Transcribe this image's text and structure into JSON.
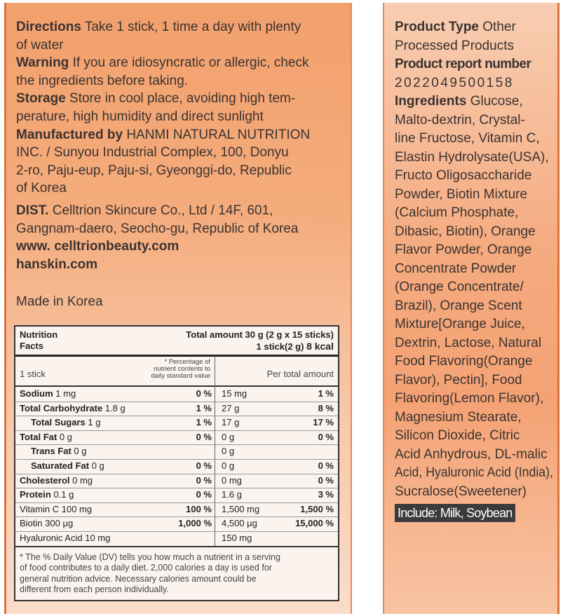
{
  "left": {
    "sections": [
      {
        "label": "Directions",
        "lines": [
          "Take 1 stick, 1 time a day with plenty",
          "of water"
        ]
      },
      {
        "label": "Warning",
        "lines": [
          "If you are idiosyncratic or allergic, check",
          "the ingredients before taking."
        ]
      },
      {
        "label": "Storage",
        "lines": [
          "Store in cool place, avoiding high tem-",
          "perature, high humidity and direct sunlight"
        ]
      },
      {
        "label": "Manufactured by",
        "lines": [
          "HANMI NATURAL NUTRITION",
          "INC. / Sunyou Industrial Complex, 100, Donyu",
          "2-ro, Paju-eup, Paju-si, Gyeonggi-do, Republic",
          "of Korea"
        ]
      },
      {
        "label": "DIST.",
        "lines": [
          "Celltrion Skincure Co., Ltd / 14F, 601,",
          "Gangnam-daero, Seocho-gu, Republic of Korea"
        ]
      }
    ],
    "websites": [
      "www. celltrionbeauty.com",
      "hanskin.com"
    ],
    "origin": "Made in Korea"
  },
  "nutrition": {
    "title_lines": [
      "Nutrition",
      "Facts"
    ],
    "total_amount": "Total amount 30 g (2 g x 15 sticks)",
    "serving": "1 stick(2 g)",
    "calories": "8 kcal",
    "col_serving": "1 stick",
    "col_percent_lines": [
      "* Percentage of",
      "nutrient contents to",
      "daily standard value"
    ],
    "col_total": "Per total amount",
    "rows": [
      {
        "name": "Sodium",
        "amount": "1 mg",
        "percent": "0 %",
        "total": "15 mg",
        "total_percent": "1 %"
      },
      {
        "name": "Total Carbohydrate",
        "amount": "1.8 g",
        "percent": "1 %",
        "total": "27 g",
        "total_percent": "8 %"
      },
      {
        "name": "Total Sugars",
        "amount": "1 g",
        "percent": "1 %",
        "total": "17 g",
        "total_percent": "17 %"
      },
      {
        "name": "Total Fat",
        "amount": "0 g",
        "percent": "0 %",
        "total": "0 g",
        "total_percent": "0 %"
      },
      {
        "name": "Trans Fat",
        "amount": "0 g",
        "percent": null,
        "total": "0 g",
        "total_percent": null
      },
      {
        "name": "Saturated Fat",
        "amount": "0 g",
        "percent": "0 %",
        "total": "0 g",
        "total_percent": "0 %"
      },
      {
        "name": "Cholesterol",
        "amount": "0 mg",
        "percent": "0 %",
        "total": "0 mg",
        "total_percent": "0 %"
      },
      {
        "name": "Protein",
        "amount": "0.1 g",
        "percent": "0 %",
        "total": "1.6 g",
        "total_percent": "3 %"
      },
      {
        "name": "Vitamin C",
        "amount": "100 mg",
        "percent": "100 %",
        "total": "1,500 mg",
        "total_percent": "1,500 %"
      },
      {
        "name": "Biotin",
        "amount": "300 μg",
        "percent": "1,000 %",
        "total": "4,500 μg",
        "total_percent": "15,000 %"
      },
      {
        "name": "Hyaluronic Acid",
        "amount": "10 mg",
        "percent": null,
        "total": "150 mg",
        "total_percent": null
      }
    ],
    "footnote_lines": [
      "* The % Daily Value (DV) tells you how much a nutrient in a serving",
      "of food contributes to a daily diet. 2,000 calories a day is used for",
      "general nutrition advice. Necessary calories amount could be",
      "different from each person individually."
    ]
  },
  "right": {
    "product_type": {
      "label": "Product Type",
      "lines": [
        "Other",
        "Processed Products"
      ]
    },
    "report_number": {
      "label": "Product report number",
      "value": "2022049500158"
    },
    "ingredients": {
      "label": "Ingredients",
      "lines": [
        "Glucose,",
        "Malto-dextrin, Crystal-",
        "line Fructose, Vitamin C,",
        "Elastin Hydrolysate(USA),",
        "Fructo Oligosaccharide",
        "Powder, Biotin Mixture",
        "(Calcium Phosphate,",
        "Dibasic, Biotin), Orange",
        "Flavor Powder, Orange",
        "Concentrate Powder",
        "(Orange Concentrate/",
        "Brazil), Orange Scent",
        "Mixture[Orange Juice,",
        "Dextrin, Lactose, Natural",
        "Food Flavoring(Orange",
        "Flavor), Pectin], Food",
        "Flavoring(Lemon Flavor),",
        "Magnesium Stearate,",
        "Silicon Dioxide, Citric",
        "Acid Anhydrous, DL-malic",
        "Acid, Hyaluronic Acid (India),",
        "Sucralose(Sweetener)"
      ]
    },
    "allergen": "Include: Milk, Soybean"
  }
}
